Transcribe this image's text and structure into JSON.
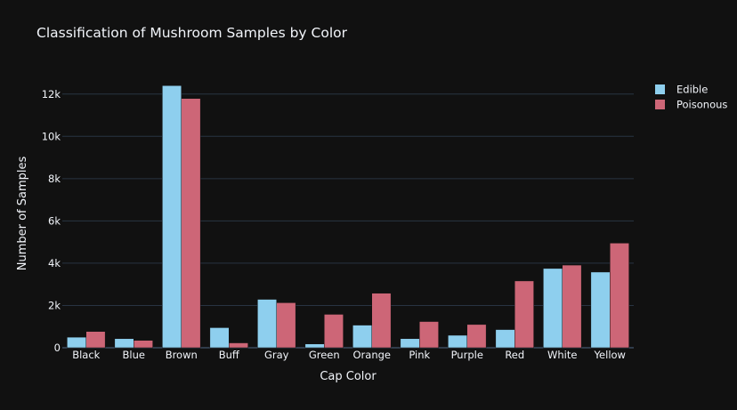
{
  "chart_data": {
    "type": "bar",
    "title": "Classification of Mushroom Samples by Color",
    "xlabel": "Cap Color",
    "ylabel": "Number of Samples",
    "categories": [
      "Black",
      "Blue",
      "Brown",
      "Buff",
      "Gray",
      "Green",
      "Orange",
      "Pink",
      "Purple",
      "Red",
      "White",
      "Yellow"
    ],
    "series": [
      {
        "name": "Edible",
        "color": "#8ecfee",
        "values": [
          500,
          430,
          12400,
          950,
          2290,
          180,
          1070,
          430,
          590,
          860,
          3750,
          3580
        ]
      },
      {
        "name": "Poisonous",
        "color": "#cd6677",
        "values": [
          770,
          350,
          11790,
          230,
          2130,
          1580,
          2580,
          1240,
          1100,
          3160,
          3910,
          4950
        ]
      }
    ],
    "ylim": [
      0,
      13000
    ],
    "yticks": [
      0,
      2000,
      4000,
      6000,
      8000,
      10000,
      12000
    ],
    "ytick_labels": [
      "0",
      "2k",
      "4k",
      "6k",
      "8k",
      "10k",
      "12k"
    ],
    "grid": true,
    "legend_position": "top-right",
    "background": "#111111",
    "grid_color": "#283442",
    "text_color": "#f2f5fa"
  }
}
